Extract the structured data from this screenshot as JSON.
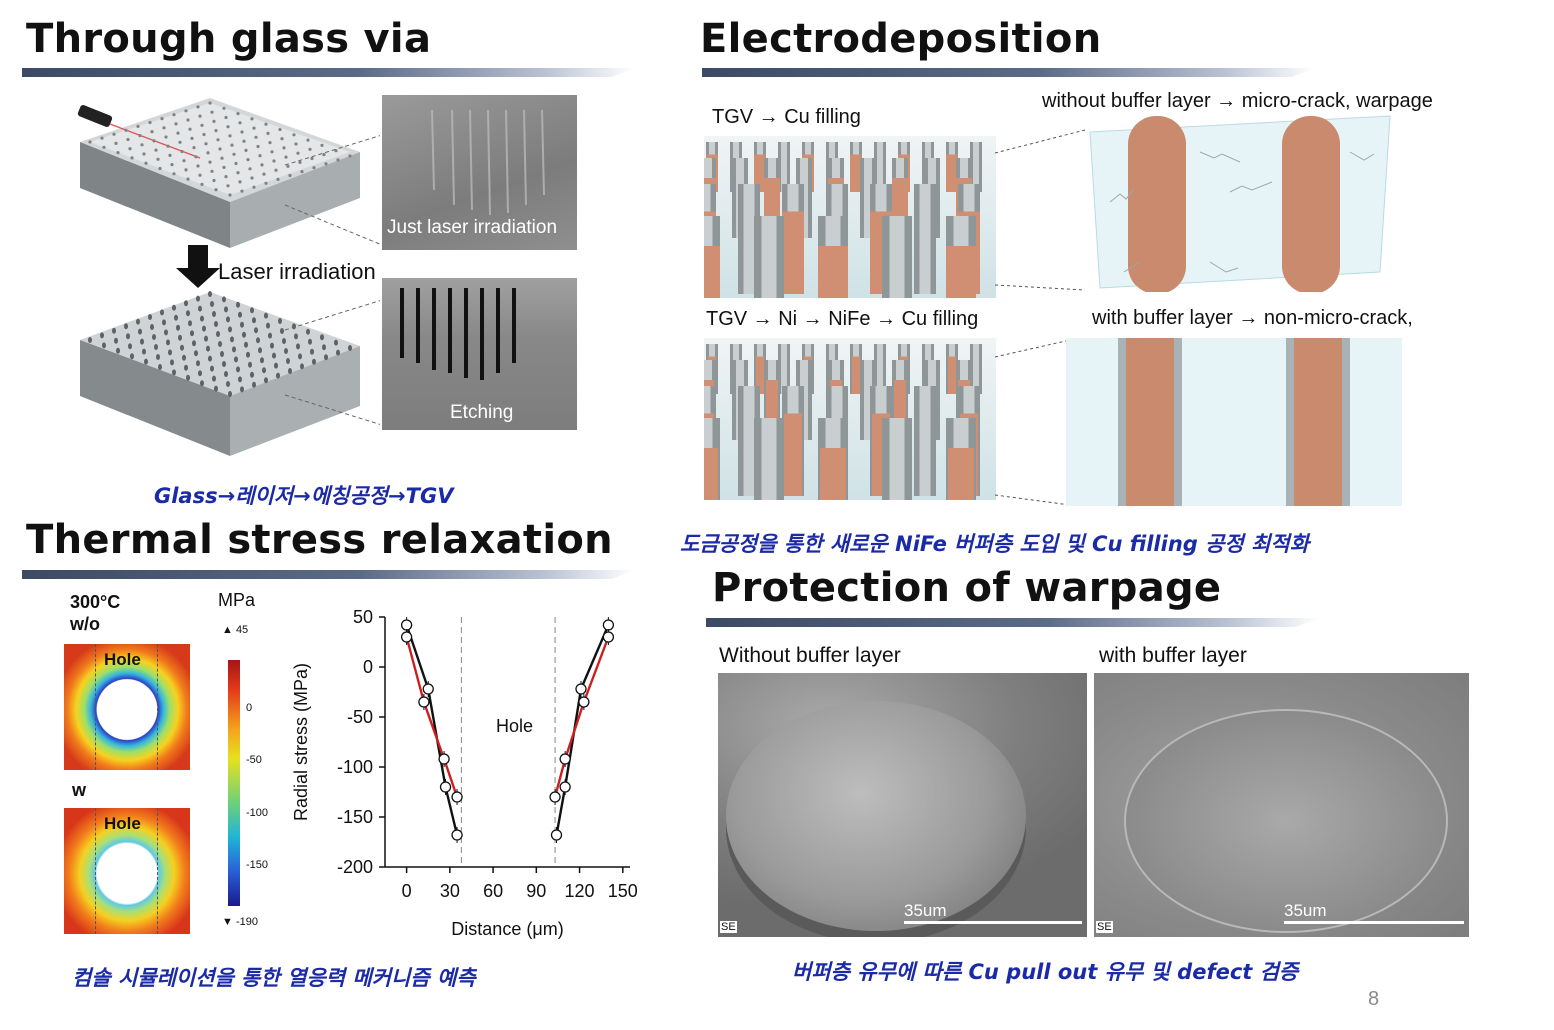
{
  "sections": {
    "tgv": {
      "title": "Through glass via",
      "sem_top_label": "Just laser irradiation",
      "step_label": "Laser irradiation",
      "sem_bottom_label": "Etching",
      "caption": "Glass→레이저→에칭공정→TGV"
    },
    "electrodeposition": {
      "title": "Electrodeposition",
      "top_left_label": "TGV → Cu filling",
      "top_right_label": "without buffer layer → micro-crack, warpage",
      "bottom_left_label": "TGV → Ni → NiFe → Cu filling",
      "bottom_right_label": "with buffer layer → non-micro-crack,",
      "caption": "도금공정을 통한 새로운 NiFe 버퍼층 도입 및 Cu filling 공정 최적화"
    },
    "thermal": {
      "title": "Thermal stress relaxation",
      "map_label_top": "300°C",
      "map_label_wo": "w/o",
      "map_label_w": "w",
      "hole_label": "Hole",
      "colorbar_unit": "MPa",
      "colorbar_ticks": [
        "▲ 45",
        "0",
        "-50",
        "-100",
        "-150",
        "▼ -190"
      ],
      "caption": "컴솔 시뮬레이션을 통한 열응력 메커니즘 예측"
    },
    "warpage": {
      "title": "Protection of warpage",
      "left_label": "Without buffer layer",
      "right_label": "with buffer layer",
      "scale_left": "35um",
      "scale_right": "35um",
      "se_label": "SE",
      "caption": "버퍼층 유무에 따른 Cu pull out 유무 및 defect 검증"
    }
  },
  "page_number": "8",
  "chart_data": {
    "type": "line",
    "xlabel": "Distance (μm)",
    "ylabel": "Radial stress (MPa)",
    "xlim": [
      -15,
      155
    ],
    "ylim": [
      -200,
      50
    ],
    "xticks": [
      "0",
      "30",
      "60",
      "90",
      "120",
      "150"
    ],
    "yticks": [
      "50",
      "0",
      "-50",
      "-100",
      "-150",
      "-200"
    ],
    "annotation": "Hole",
    "hole_bounds": [
      38,
      103
    ],
    "series": [
      {
        "color": "#111111",
        "points": [
          [
            0,
            42
          ],
          [
            15,
            -22
          ],
          [
            27,
            -120
          ],
          [
            35,
            -168
          ]
        ]
      },
      {
        "color": "#cc1f1f",
        "points": [
          [
            0,
            30
          ],
          [
            12,
            -35
          ],
          [
            26,
            -92
          ],
          [
            35,
            -130
          ]
        ]
      },
      {
        "color": "#111111",
        "points": [
          [
            104,
            -168
          ],
          [
            110,
            -120
          ],
          [
            121,
            -22
          ],
          [
            140,
            42
          ]
        ]
      },
      {
        "color": "#cc1f1f",
        "points": [
          [
            103,
            -130
          ],
          [
            110,
            -92
          ],
          [
            123,
            -35
          ],
          [
            140,
            30
          ]
        ]
      }
    ]
  }
}
